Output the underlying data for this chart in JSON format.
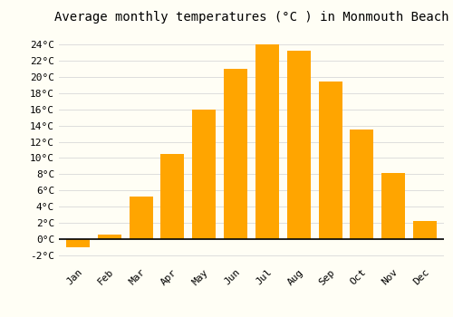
{
  "title": "Average monthly temperatures (°C ) in Monmouth Beach",
  "months": [
    "Jan",
    "Feb",
    "Mar",
    "Apr",
    "May",
    "Jun",
    "Jul",
    "Aug",
    "Sep",
    "Oct",
    "Nov",
    "Dec"
  ],
  "values": [
    -1.0,
    0.5,
    5.2,
    10.5,
    16.0,
    21.0,
    24.0,
    23.3,
    19.5,
    13.5,
    8.1,
    2.2
  ],
  "bar_color": "#FFA500",
  "background_color": "#FFFEF5",
  "ylim": [
    -3,
    26
  ],
  "yticks": [
    -2,
    0,
    2,
    4,
    6,
    8,
    10,
    12,
    14,
    16,
    18,
    20,
    22,
    24
  ],
  "grid_color": "#dddddd",
  "title_fontsize": 10,
  "tick_fontsize": 8,
  "font_family": "monospace"
}
